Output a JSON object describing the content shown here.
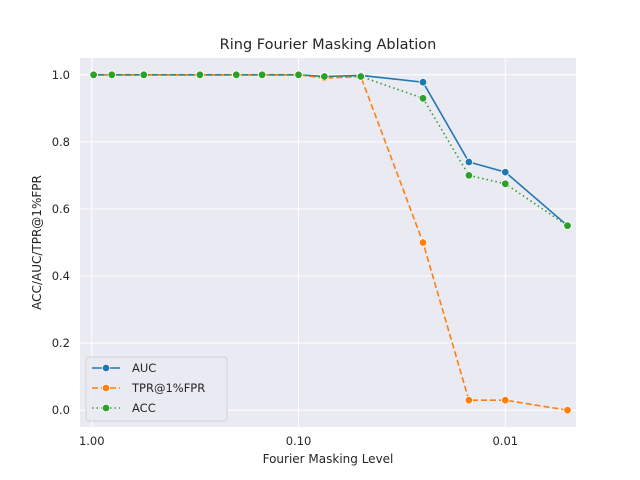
{
  "chart_data": {
    "type": "line",
    "title": "Ring Fourier Masking Ablation",
    "xlabel": "Fourier Masking Level",
    "ylabel": "ACC/AUC/TPR@1%FPR",
    "x_scale": "log",
    "x_reversed": true,
    "x": [
      0.98,
      0.8,
      0.56,
      0.3,
      0.2,
      0.15,
      0.1,
      0.075,
      0.05,
      0.025,
      0.015,
      0.01,
      0.005
    ],
    "xticks": [
      {
        "value": 1.0,
        "label": "1.00"
      },
      {
        "value": 0.1,
        "label": "0.10"
      },
      {
        "value": 0.01,
        "label": "0.01"
      }
    ],
    "yticks": [
      {
        "value": 0.0,
        "label": "0.0"
      },
      {
        "value": 0.2,
        "label": "0.2"
      },
      {
        "value": 0.4,
        "label": "0.4"
      },
      {
        "value": 0.6,
        "label": "0.6"
      },
      {
        "value": 0.8,
        "label": "0.8"
      },
      {
        "value": 1.0,
        "label": "1.0"
      }
    ],
    "ylim": [
      -0.05,
      1.05
    ],
    "grid": true,
    "legend_position": "lower-left",
    "series": [
      {
        "name": "AUC",
        "color": "#1f77b4",
        "dash": "solid",
        "values": [
          1.0,
          1.0,
          1.0,
          1.0,
          1.0,
          1.0,
          1.0,
          0.995,
          0.998,
          0.978,
          0.74,
          0.71,
          0.55
        ]
      },
      {
        "name": "TPR@1%FPR",
        "color": "#ff7f0e",
        "dash": "dashed",
        "values": [
          1.0,
          1.0,
          1.0,
          1.0,
          1.0,
          1.0,
          1.0,
          0.99,
          0.995,
          0.5,
          0.03,
          0.03,
          0.0
        ]
      },
      {
        "name": "ACC",
        "color": "#2ca02c",
        "dash": "dotted",
        "values": [
          1.0,
          1.0,
          1.0,
          1.0,
          1.0,
          1.0,
          1.0,
          0.995,
          0.995,
          0.93,
          0.7,
          0.675,
          0.55
        ]
      }
    ]
  }
}
